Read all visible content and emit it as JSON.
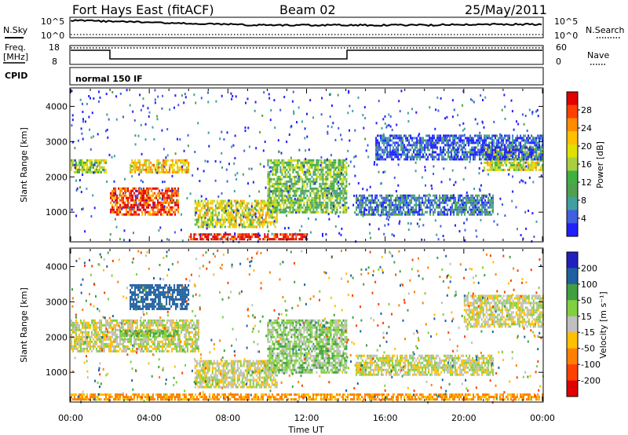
{
  "header": {
    "radar": "Fort Hays East (fitACF)",
    "beam": "Beam 02",
    "date": "25/May/2011"
  },
  "top_panels": {
    "nsky_label": "N.Sky",
    "nsky_ticks": [
      "10^5",
      "10^0"
    ],
    "nsearch_label": "N.Search",
    "freq_label_1": "Freq.",
    "freq_label_2": "[MHz]",
    "freq_ticks": [
      "18",
      "8"
    ],
    "nave_label": "Nave",
    "nave_ticks": [
      "60",
      "0"
    ],
    "cpid_label": "CPID",
    "cpid_value": "normal 150 IF"
  },
  "chart_data": [
    {
      "type": "heatmap",
      "title": "",
      "xlabel": "Time UT",
      "ylabel": "Slant Range [km]",
      "xlim": [
        0,
        24
      ],
      "ylim": [
        180,
        4500
      ],
      "x_ticks": [
        "00:00",
        "04:00",
        "08:00",
        "12:00",
        "16:00",
        "20:00",
        "00:00"
      ],
      "y_ticks": [
        "1000",
        "2000",
        "3000",
        "4000"
      ],
      "colorbar": {
        "label": "Power [dB]",
        "ticks": [
          "28",
          "24",
          "20",
          "16",
          "12",
          "8",
          "4"
        ],
        "colors": [
          "#e00000",
          "#ff4000",
          "#ff8c00",
          "#ffc000",
          "#e0e000",
          "#a8d040",
          "#40b040",
          "#50a050",
          "#40a0a0",
          "#4060e0",
          "#2020ff"
        ]
      },
      "features": [
        {
          "t": [
            0,
            1.8
          ],
          "range": [
            2100,
            2500
          ],
          "level": 16
        },
        {
          "t": [
            2.0,
            5.5
          ],
          "range": [
            950,
            1700
          ],
          "level": 26
        },
        {
          "t": [
            3.0,
            6.0
          ],
          "range": [
            2100,
            2500
          ],
          "level": 20
        },
        {
          "t": [
            6.3,
            10.5
          ],
          "range": [
            550,
            1350
          ],
          "level": 18
        },
        {
          "t": [
            10.0,
            14.0
          ],
          "range": [
            1000,
            2500
          ],
          "level": 14
        },
        {
          "t": [
            6.0,
            12.0
          ],
          "range": [
            200,
            400
          ],
          "level": 28
        },
        {
          "t": [
            14.5,
            21.5
          ],
          "range": [
            900,
            1500
          ],
          "level": 8
        },
        {
          "t": [
            21.0,
            24.0
          ],
          "range": [
            2200,
            2900
          ],
          "level": 18
        },
        {
          "t": [
            15.5,
            24.0
          ],
          "range": [
            2500,
            3200
          ],
          "level": 6
        }
      ]
    },
    {
      "type": "heatmap",
      "title": "",
      "xlabel": "Time UT",
      "ylabel": "Slant Range [km]",
      "xlim": [
        0,
        24
      ],
      "ylim": [
        180,
        4500
      ],
      "x_ticks": [
        "00:00",
        "04:00",
        "08:00",
        "12:00",
        "16:00",
        "20:00",
        "00:00"
      ],
      "y_ticks": [
        "1000",
        "2000",
        "3000",
        "4000"
      ],
      "colorbar": {
        "label": "Velocity [m s⁻¹]",
        "ticks": [
          "200",
          "100",
          "50",
          "15",
          "-15",
          "-50",
          "-100",
          "-200"
        ],
        "colors": [
          "#2020c0",
          "#2060a0",
          "#40a040",
          "#80d040",
          "#c0c0c0",
          "#ffc000",
          "#ff8000",
          "#ff4000",
          "#e00000"
        ]
      },
      "features": [
        {
          "t": [
            0,
            6.5
          ],
          "range": [
            1600,
            2500
          ],
          "velocity": 0
        },
        {
          "t": [
            2.5,
            5.5
          ],
          "range": [
            2000,
            2200
          ],
          "velocity": 60
        },
        {
          "t": [
            3.0,
            6.0
          ],
          "range": [
            2800,
            3500
          ],
          "velocity": 150
        },
        {
          "t": [
            6.3,
            10.5
          ],
          "range": [
            550,
            1350
          ],
          "velocity": 0
        },
        {
          "t": [
            10.0,
            14.0
          ],
          "range": [
            1000,
            2500
          ],
          "velocity": 30
        },
        {
          "t": [
            0,
            24
          ],
          "range": [
            200,
            400
          ],
          "velocity": -60
        },
        {
          "t": [
            14.5,
            21.5
          ],
          "range": [
            900,
            1500
          ],
          "velocity": 0
        },
        {
          "t": [
            20.0,
            24.0
          ],
          "range": [
            2300,
            3200
          ],
          "velocity": 0
        }
      ]
    }
  ]
}
